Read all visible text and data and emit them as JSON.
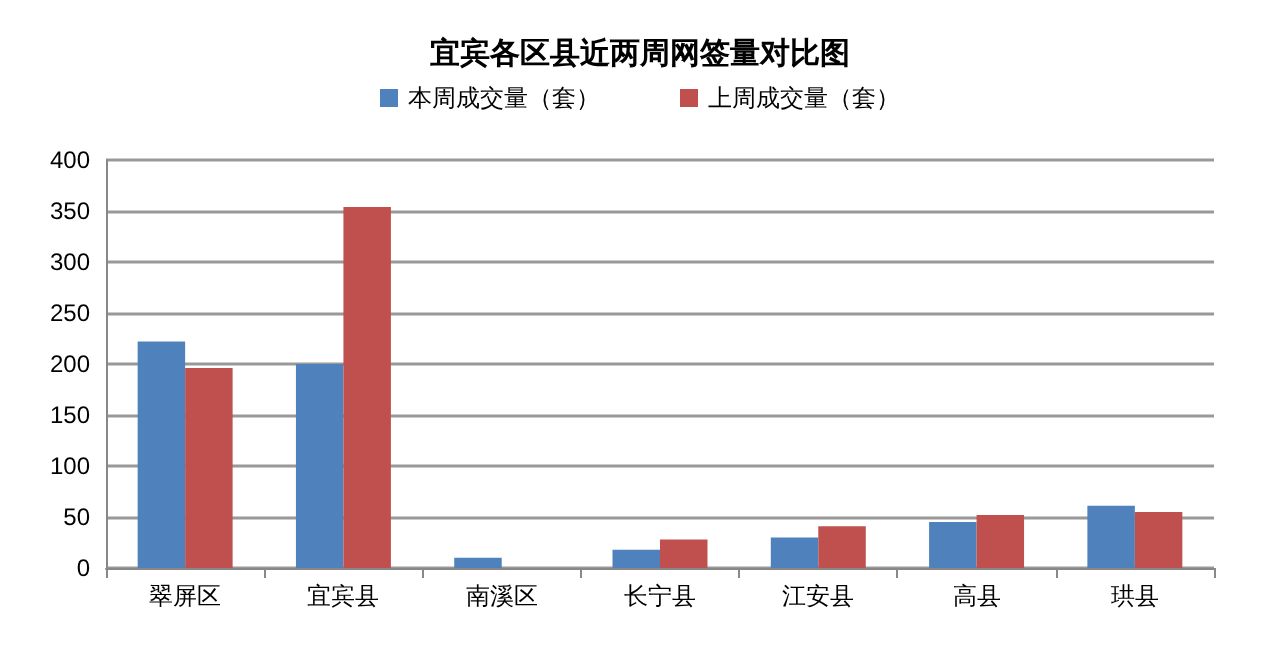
{
  "chart_data": {
    "type": "bar",
    "title": "宜宾各区县近两周网签量对比图",
    "categories": [
      "翠屏区",
      "宜宾县",
      "南溪区",
      "长宁县",
      "江安县",
      "高县",
      "珙县"
    ],
    "series": [
      {
        "name": "本周成交量（套）",
        "color": "#4f81bd",
        "values": [
          222,
          200,
          10,
          18,
          30,
          45,
          61
        ]
      },
      {
        "name": "上周成交量（套）",
        "color": "#c0504d",
        "values": [
          196,
          354,
          0,
          28,
          41,
          52,
          55
        ]
      }
    ],
    "ylim": [
      0,
      400
    ],
    "yticks": [
      0,
      50,
      100,
      150,
      200,
      250,
      300,
      350,
      400
    ],
    "grid": "y",
    "legend": "top"
  }
}
